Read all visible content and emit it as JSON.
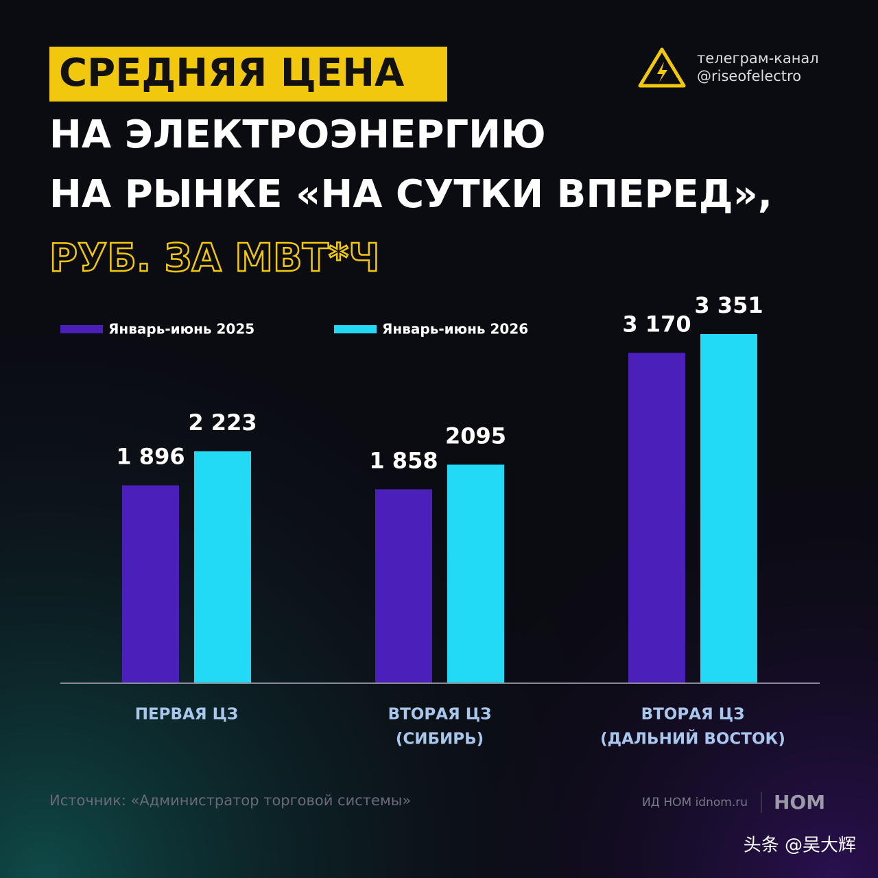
{
  "header": {
    "title_highlight": "СРЕДНЯЯ ЦЕНА",
    "title_lines": [
      "НА ЭЛЕКТРОЭНЕРГИЮ",
      "НА РЫНКЕ «НА СУТКИ ВПЕРЕД»,"
    ],
    "subtitle": "РУБ. ЗА МВТ*Ч",
    "channel_label": "телеграм-канал",
    "channel_handle": "@riseofelectro"
  },
  "chart_data": {
    "type": "bar",
    "categories": [
      [
        "ПЕРВАЯ ЦЗ"
      ],
      [
        "ВТОРАЯ ЦЗ",
        "(СИБИРЬ)"
      ],
      [
        "ВТОРАЯ ЦЗ",
        "(ДАЛЬНИЙ ВОСТОК)"
      ]
    ],
    "series": [
      {
        "name": "Январь-июнь 2025",
        "color": "#4b1fba",
        "values": [
          1896,
          1858,
          3170
        ],
        "value_labels": [
          "1 896",
          "1 858",
          "3 170"
        ]
      },
      {
        "name": "Январь-июнь 2026",
        "color": "#22d9f6",
        "values": [
          2223,
          2095,
          3351
        ],
        "value_labels": [
          "2 223",
          "2095",
          "3 351"
        ]
      }
    ]
  },
  "footer": {
    "source": "Источник: «Администратор торговой системы»",
    "publisher": "ИД НОМ idnom.ru",
    "logo": "НОМ",
    "watermark": "头条 @吴大辉"
  }
}
